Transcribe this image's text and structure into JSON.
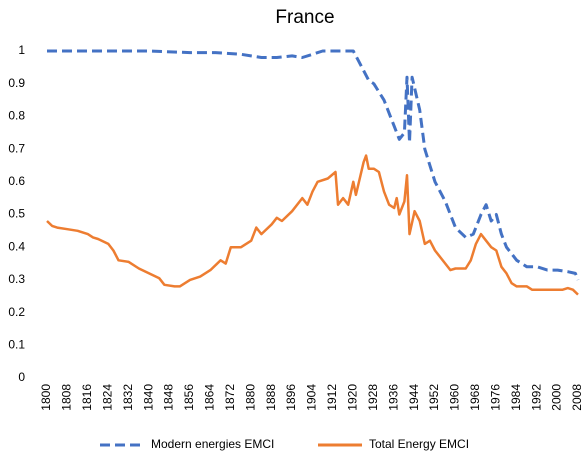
{
  "chart_data": {
    "type": "line",
    "title": "France",
    "xlim": [
      1800,
      2008
    ],
    "xticks": [
      1800,
      1808,
      1816,
      1824,
      1832,
      1840,
      1848,
      1856,
      1864,
      1872,
      1880,
      1888,
      1896,
      1904,
      1912,
      1920,
      1928,
      1936,
      1944,
      1952,
      1960,
      1968,
      1976,
      1984,
      1992,
      2000,
      2008
    ],
    "ylim": [
      0,
      1
    ],
    "yticks": [
      0,
      0.1,
      0.2,
      0.3,
      0.4,
      0.5,
      0.6,
      0.7,
      0.8,
      0.9,
      1
    ],
    "grid": false,
    "legend": "bottom",
    "series": [
      {
        "name": "Modern energies EMCI",
        "color": "#4472c4",
        "dash": true,
        "x": [
          1800,
          1820,
          1840,
          1856,
          1866,
          1876,
          1884,
          1890,
          1896,
          1900,
          1904,
          1908,
          1914,
          1920,
          1922,
          1926,
          1928,
          1932,
          1936,
          1938,
          1940,
          1941,
          1942,
          1943,
          1946,
          1948,
          1952,
          1956,
          1960,
          1964,
          1967,
          1970,
          1972,
          1974,
          1976,
          1978,
          1980,
          1984,
          1988,
          1992,
          1996,
          2000,
          2004,
          2007,
          2008
        ],
        "values": [
          1.0,
          1.0,
          1.0,
          0.995,
          0.995,
          0.99,
          0.98,
          0.98,
          0.985,
          0.98,
          0.99,
          1.0,
          1.0,
          1.0,
          0.97,
          0.91,
          0.9,
          0.85,
          0.77,
          0.73,
          0.75,
          0.92,
          0.72,
          0.92,
          0.82,
          0.7,
          0.6,
          0.54,
          0.46,
          0.43,
          0.44,
          0.5,
          0.53,
          0.48,
          0.5,
          0.44,
          0.4,
          0.36,
          0.34,
          0.34,
          0.33,
          0.33,
          0.325,
          0.32,
          0.3
        ]
      },
      {
        "name": "Total Energy EMCI",
        "color": "#ed7d31",
        "dash": false,
        "x": [
          1800,
          1802,
          1804,
          1808,
          1812,
          1816,
          1818,
          1820,
          1824,
          1826,
          1828,
          1832,
          1836,
          1840,
          1844,
          1846,
          1850,
          1852,
          1856,
          1860,
          1864,
          1868,
          1870,
          1872,
          1876,
          1880,
          1882,
          1884,
          1888,
          1890,
          1892,
          1896,
          1900,
          1902,
          1904,
          1906,
          1910,
          1913,
          1914,
          1916,
          1918,
          1920,
          1921,
          1924,
          1925,
          1926,
          1928,
          1930,
          1932,
          1934,
          1936,
          1937,
          1938,
          1940,
          1941,
          1942,
          1944,
          1946,
          1948,
          1950,
          1952,
          1956,
          1958,
          1960,
          1964,
          1966,
          1968,
          1970,
          1972,
          1974,
          1976,
          1978,
          1980,
          1982,
          1984,
          1988,
          1990,
          1992,
          1996,
          2000,
          2002,
          2004,
          2006,
          2008
        ],
        "values": [
          0.48,
          0.465,
          0.46,
          0.455,
          0.45,
          0.44,
          0.43,
          0.425,
          0.41,
          0.39,
          0.36,
          0.355,
          0.335,
          0.32,
          0.305,
          0.285,
          0.28,
          0.28,
          0.3,
          0.31,
          0.33,
          0.36,
          0.35,
          0.4,
          0.4,
          0.42,
          0.46,
          0.44,
          0.47,
          0.49,
          0.48,
          0.51,
          0.55,
          0.53,
          0.57,
          0.6,
          0.61,
          0.63,
          0.53,
          0.55,
          0.53,
          0.6,
          0.56,
          0.66,
          0.68,
          0.64,
          0.64,
          0.63,
          0.57,
          0.53,
          0.52,
          0.55,
          0.5,
          0.54,
          0.62,
          0.44,
          0.51,
          0.48,
          0.41,
          0.42,
          0.39,
          0.35,
          0.33,
          0.335,
          0.335,
          0.36,
          0.41,
          0.44,
          0.42,
          0.4,
          0.39,
          0.34,
          0.32,
          0.29,
          0.28,
          0.28,
          0.27,
          0.27,
          0.27,
          0.27,
          0.27,
          0.275,
          0.27,
          0.255
        ]
      }
    ]
  }
}
